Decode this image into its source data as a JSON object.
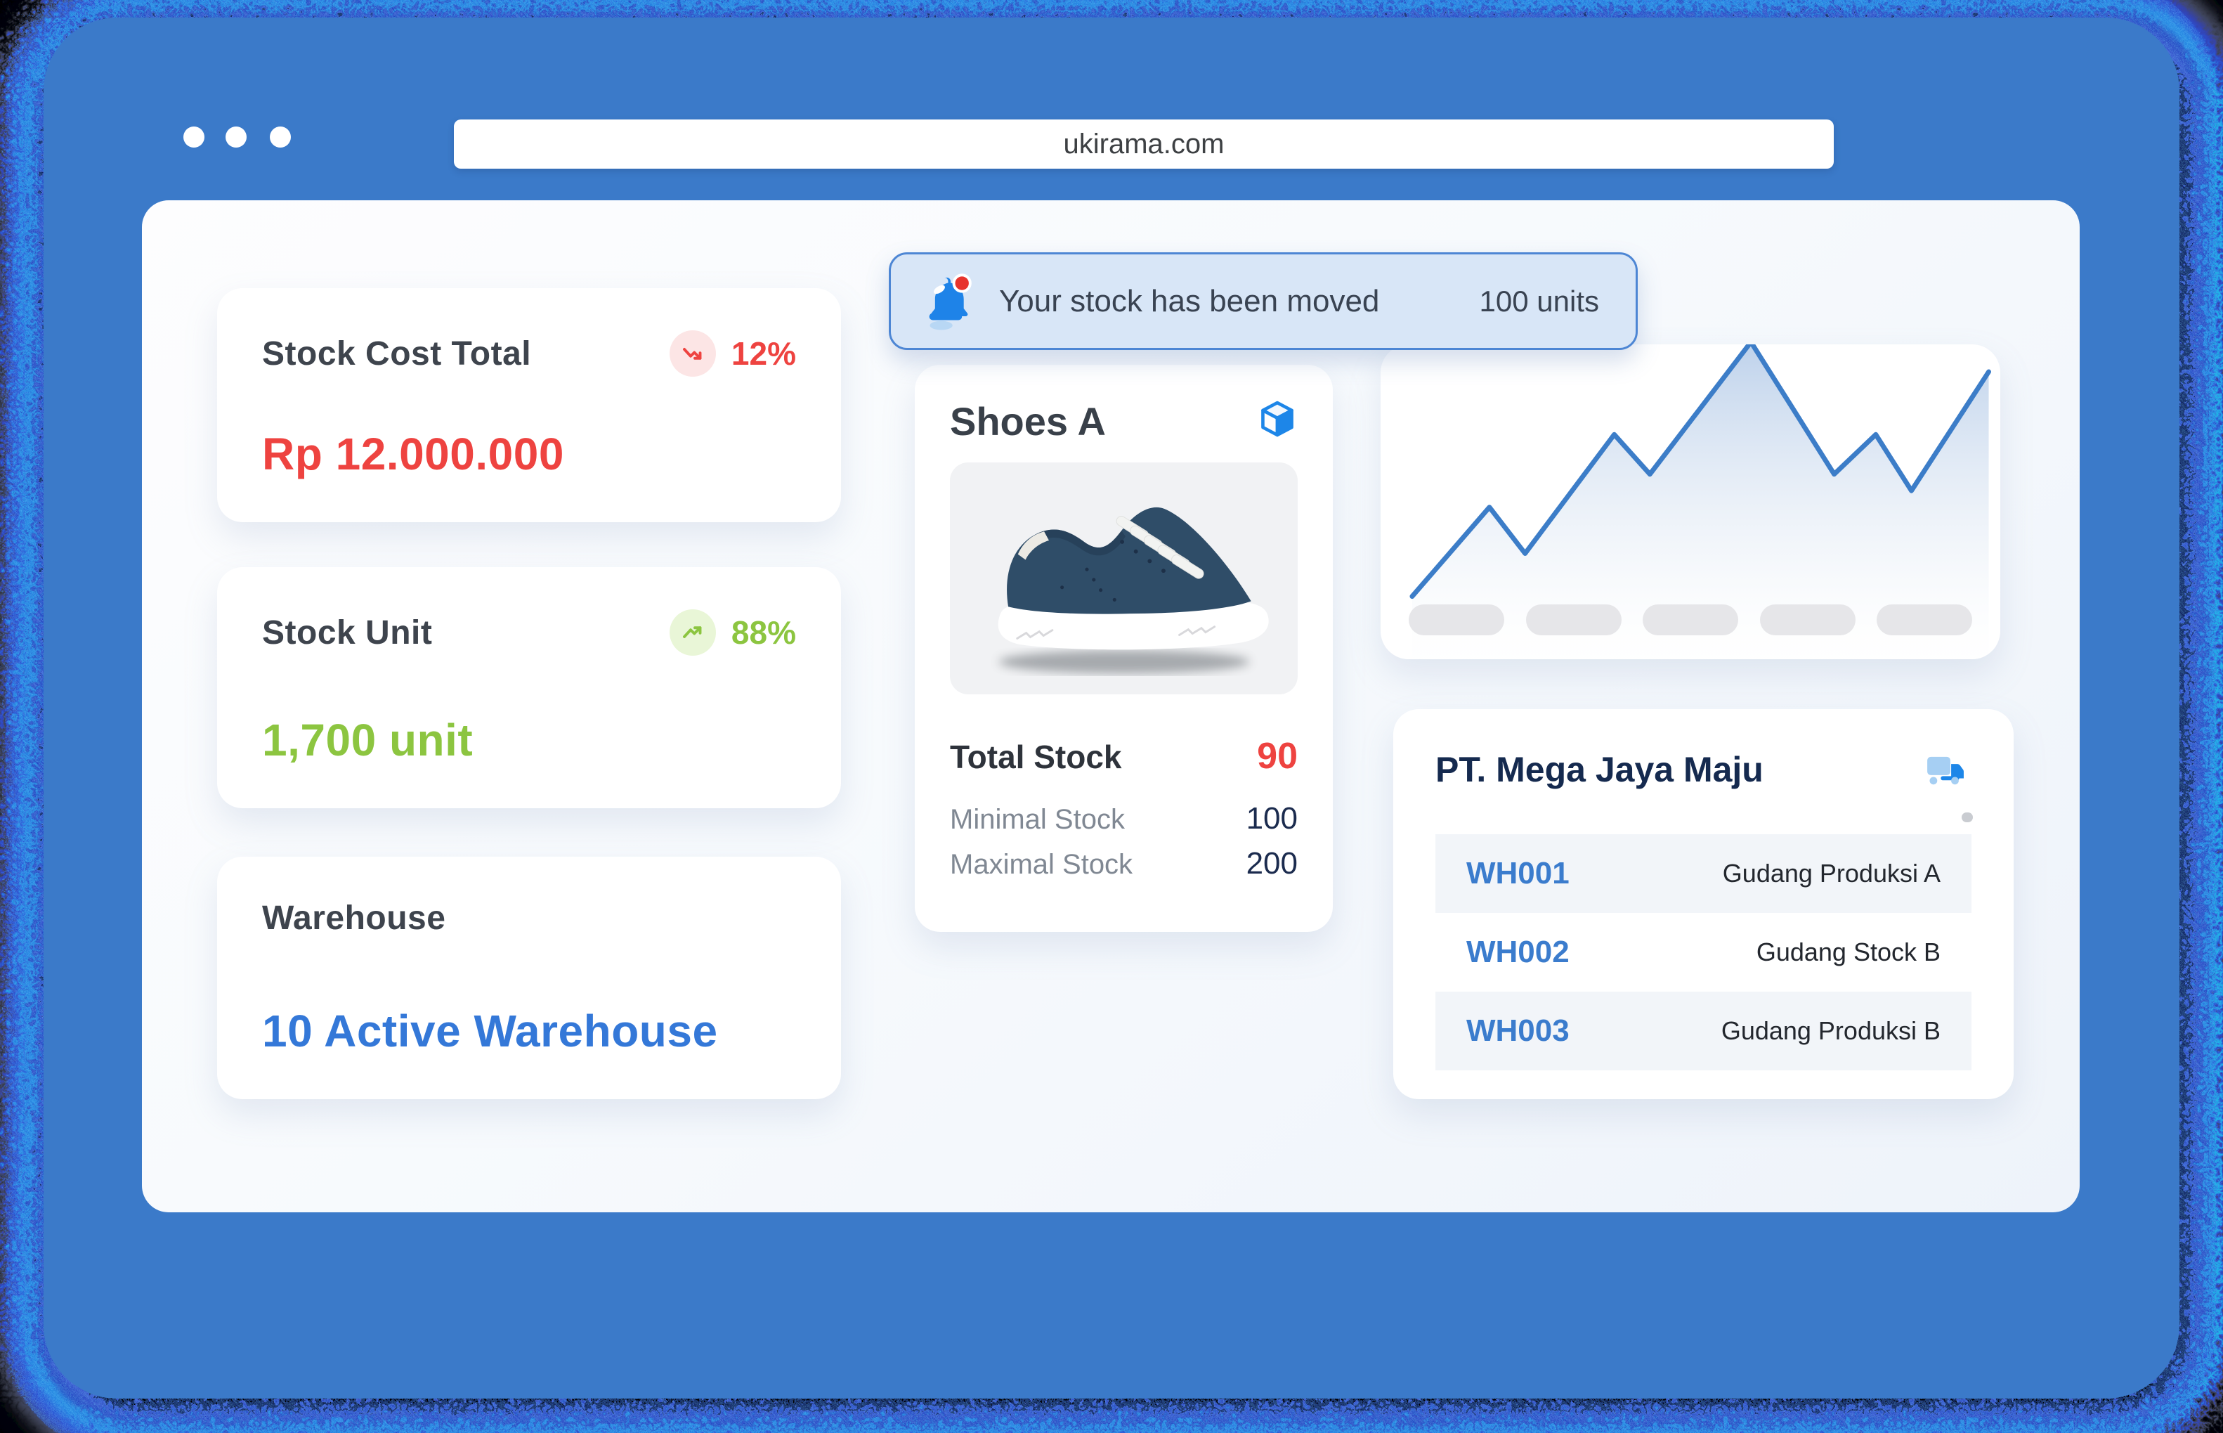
{
  "window": {
    "url": "ukirama.com"
  },
  "stats": [
    {
      "title": "Stock Cost Total",
      "trend": "down",
      "percent": "12%",
      "value": "Rp 12.000.000"
    },
    {
      "title": "Stock Unit",
      "trend": "up",
      "percent": "88%",
      "value": "1,700 unit"
    },
    {
      "title": "Warehouse",
      "value": "10 Active Warehouse"
    }
  ],
  "notification": {
    "message": "Your stock has been moved",
    "amount": "100 units"
  },
  "product": {
    "name": "Shoes A",
    "total_stock_label": "Total Stock",
    "total_stock": "90",
    "minimal_label": "Minimal Stock",
    "minimal": "100",
    "maximal_label": "Maximal Stock",
    "maximal": "200"
  },
  "chart_data": {
    "type": "area",
    "title": "",
    "xlabel": "",
    "ylabel": "",
    "legend": false,
    "grid": false,
    "x_placeholder_ticks": 5,
    "points_pct": [
      [
        2,
        78
      ],
      [
        15,
        51
      ],
      [
        21,
        65
      ],
      [
        36,
        29
      ],
      [
        42,
        41
      ],
      [
        59,
        1
      ],
      [
        73,
        41
      ],
      [
        80,
        29
      ],
      [
        86,
        46
      ],
      [
        99,
        10
      ]
    ],
    "note": "unlabeled stock-trend sparkline; points are [x%, y% from top] of plot area",
    "line_color": "#3c7dc8",
    "fill_top": "#adc6e6",
    "fill_bottom": "#f6f9fc"
  },
  "warehouse_panel": {
    "title": "PT. Mega Jaya Maju",
    "rows": [
      {
        "code": "WH001",
        "name": "Gudang Produksi A"
      },
      {
        "code": "WH002",
        "name": "Gudang Stock B"
      },
      {
        "code": "WH003",
        "name": "Gudang Produksi B"
      }
    ]
  },
  "icons": {
    "window_dots": "window-controls",
    "trend_down": "arrow-down-right",
    "trend_up": "arrow-up-right",
    "bell": "notification-bell-with-red-badge",
    "cube": "3d-cube",
    "truck": "delivery-truck",
    "product_image": "navy-sneaker-side-view"
  },
  "colors": {
    "frame_blue": "#3b7ac9",
    "accent_blue": "#3478d8",
    "link_blue": "#3b7ccd",
    "red": "#ee4340",
    "green": "#8cc540",
    "navy": "#1b2b4e",
    "banner_bg": "#d8e6f7",
    "banner_border": "#4d86d4",
    "glitch_cyan": "#1edef5"
  }
}
